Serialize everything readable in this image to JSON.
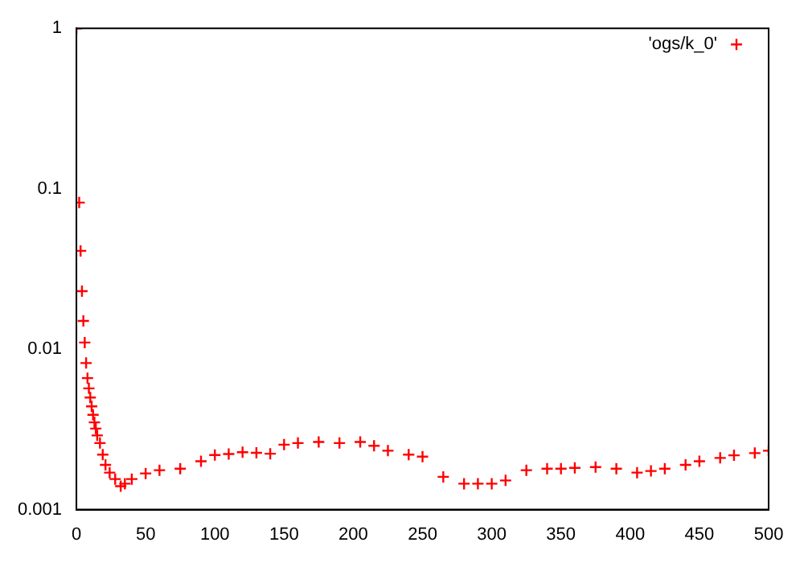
{
  "chart_data": {
    "type": "scatter",
    "x": [
      0,
      2,
      3,
      4,
      5,
      6,
      7,
      8,
      9,
      10,
      11,
      12,
      13,
      14,
      15,
      17,
      19,
      21,
      24,
      28,
      32,
      35,
      40,
      50,
      60,
      75,
      90,
      100,
      110,
      120,
      130,
      140,
      150,
      160,
      175,
      190,
      205,
      215,
      225,
      240,
      250,
      265,
      280,
      290,
      300,
      310,
      325,
      340,
      350,
      360,
      375,
      390,
      405,
      415,
      425,
      440,
      450,
      465,
      475,
      490,
      500
    ],
    "series": [
      {
        "name": "'ogs/k_0'",
        "color": "#ff0000",
        "values": [
          1,
          0.082,
          0.041,
          0.023,
          0.015,
          0.011,
          0.0082,
          0.0066,
          0.0057,
          0.005,
          0.0044,
          0.0039,
          0.0035,
          0.0032,
          0.0029,
          0.0026,
          0.0022,
          0.0019,
          0.0017,
          0.00155,
          0.0014,
          0.00145,
          0.00155,
          0.00168,
          0.00176,
          0.0018,
          0.002,
          0.00219,
          0.00222,
          0.00228,
          0.00226,
          0.00223,
          0.00254,
          0.0026,
          0.00264,
          0.0026,
          0.00264,
          0.0025,
          0.00233,
          0.0022,
          0.00214,
          0.0016,
          0.00145,
          0.00145,
          0.00145,
          0.00152,
          0.00176,
          0.0018,
          0.0018,
          0.00182,
          0.00184,
          0.0018,
          0.0017,
          0.00174,
          0.0018,
          0.0019,
          0.002,
          0.0021,
          0.00218,
          0.00225,
          0.00233
        ]
      }
    ],
    "xlim": [
      0,
      500
    ],
    "xticks": [
      0,
      50,
      100,
      150,
      200,
      250,
      300,
      350,
      400,
      450,
      500
    ],
    "ylim": [
      0.001,
      1
    ],
    "yticks": [
      0.001,
      0.01,
      0.1,
      1
    ],
    "log": "y",
    "marker": "cross",
    "legend": "top right",
    "grid": false
  }
}
